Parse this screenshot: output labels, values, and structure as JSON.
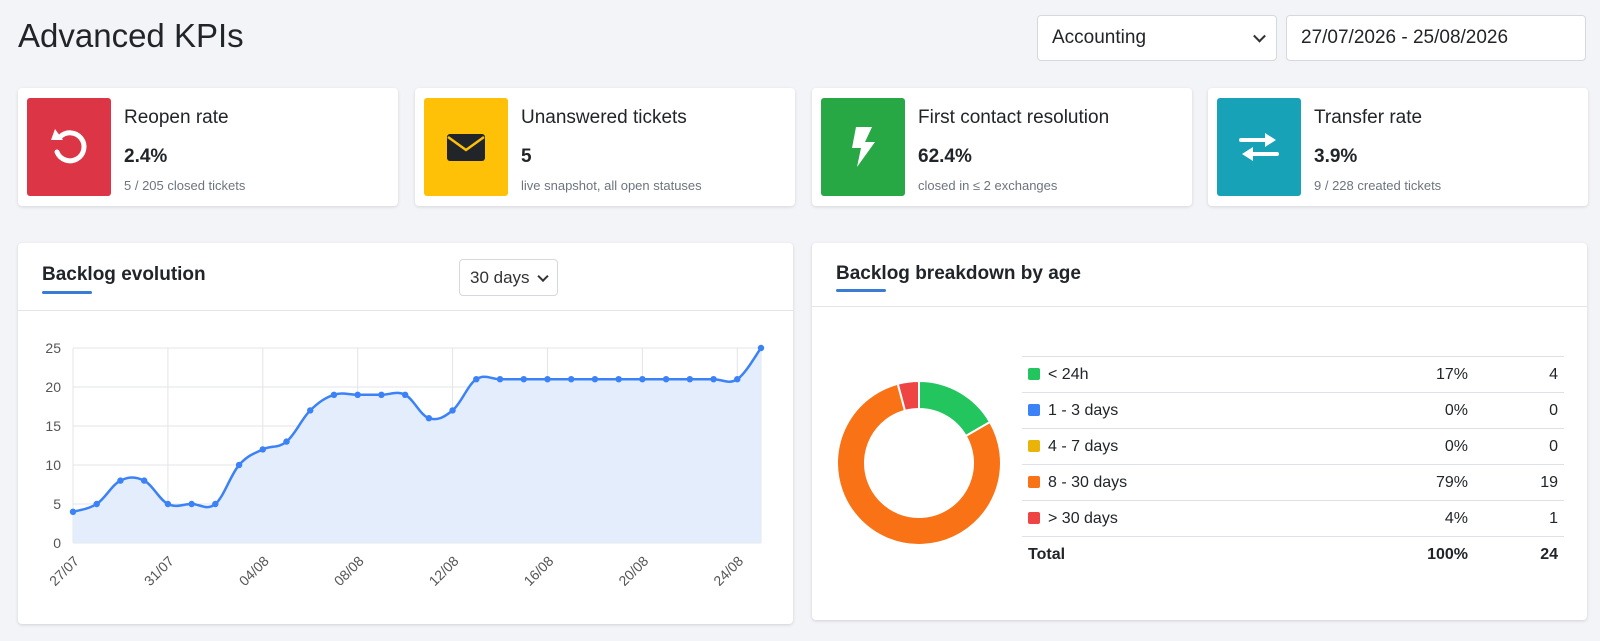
{
  "header": {
    "title": "Advanced KPIs",
    "department_select": "Accounting",
    "date_range": "27/07/2026 - 25/08/2026"
  },
  "kpis": [
    {
      "title": "Reopen rate",
      "value": "2.4%",
      "sub": "5 / 205 closed tickets",
      "color": "#dc3545",
      "icon": "reopen-icon"
    },
    {
      "title": "Unanswered tickets",
      "value": "5",
      "sub": "live snapshot, all open statuses",
      "color": "#ffc107",
      "icon": "envelope-icon"
    },
    {
      "title": "First contact resolution",
      "value": "62.4%",
      "sub": "closed in ≤ 2 exchanges",
      "color": "#28a745",
      "icon": "lightning-icon"
    },
    {
      "title": "Transfer rate",
      "value": "3.9%",
      "sub": "9 / 228 created tickets",
      "color": "#17a2b8",
      "icon": "transfer-icon"
    }
  ],
  "backlog_panel": {
    "title": "Backlog evolution",
    "range_select": "30 days"
  },
  "breakdown_panel": {
    "title": "Backlog breakdown by age",
    "rows": [
      {
        "label": "< 24h",
        "percent": "17%",
        "count": "4",
        "color": "#22c55e"
      },
      {
        "label": "1 - 3 days",
        "percent": "0%",
        "count": "0",
        "color": "#3b82f6"
      },
      {
        "label": "4 - 7 days",
        "percent": "0%",
        "count": "0",
        "color": "#eab308"
      },
      {
        "label": "8 - 30 days",
        "percent": "79%",
        "count": "19",
        "color": "#f97316"
      },
      {
        "label": "> 30 days",
        "percent": "4%",
        "count": "1",
        "color": "#ef4444"
      }
    ],
    "total": {
      "label": "Total",
      "percent": "100%",
      "count": "24"
    }
  },
  "chart_data": [
    {
      "type": "area",
      "x": [
        "27/07",
        "28/07",
        "29/07",
        "30/07",
        "31/07",
        "01/08",
        "02/08",
        "03/08",
        "04/08",
        "05/08",
        "06/08",
        "07/08",
        "08/08",
        "09/08",
        "10/08",
        "11/08",
        "12/08",
        "13/08",
        "14/08",
        "15/08",
        "16/08",
        "17/08",
        "18/08",
        "19/08",
        "20/08",
        "21/08",
        "22/08",
        "23/08",
        "24/08",
        "25/08"
      ],
      "tick_labels": [
        "27/07",
        "31/07",
        "04/08",
        "08/08",
        "12/08",
        "16/08",
        "20/08",
        "24/08"
      ],
      "series": [
        {
          "values": [
            4,
            5,
            8,
            8,
            5,
            5,
            5,
            10,
            12,
            13,
            17,
            19,
            19,
            19,
            19,
            16,
            17,
            21,
            21,
            21,
            21,
            21,
            21,
            21,
            21,
            21,
            21,
            21,
            21,
            25
          ]
        }
      ],
      "ylim": [
        0,
        25
      ],
      "yticks": [
        0,
        5,
        10,
        15,
        20,
        25
      ],
      "grid": true,
      "line_color": "#3b82f6",
      "fill_color": "#e3edfc"
    },
    {
      "type": "pie",
      "donut": true,
      "categories": [
        "< 24h",
        "1 - 3 days",
        "4 - 7 days",
        "8 - 30 days",
        "> 30 days"
      ],
      "values": [
        4,
        0,
        0,
        19,
        1
      ],
      "colors": [
        "#22c55e",
        "#3b82f6",
        "#eab308",
        "#f97316",
        "#ef4444"
      ]
    }
  ]
}
